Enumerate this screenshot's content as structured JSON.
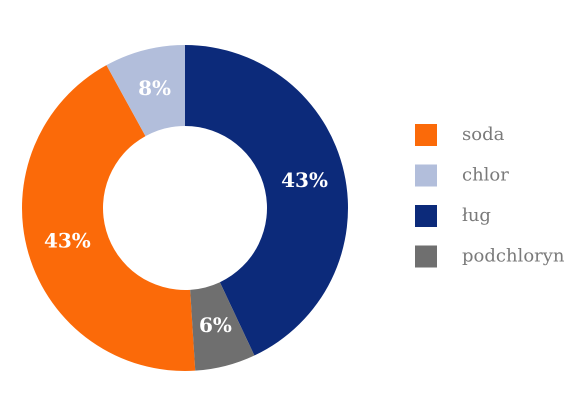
{
  "chart_data": {
    "type": "donut",
    "categories": [
      "soda",
      "chlor",
      "ług",
      "podchloryn"
    ],
    "values": [
      43,
      8,
      43,
      6
    ],
    "value_labels": [
      "43%",
      "8%",
      "43%",
      "6%"
    ],
    "colors": [
      "#fb6a09",
      "#b2bedb",
      "#0c2a7a",
      "#6f6f6f"
    ],
    "legend": "right"
  }
}
